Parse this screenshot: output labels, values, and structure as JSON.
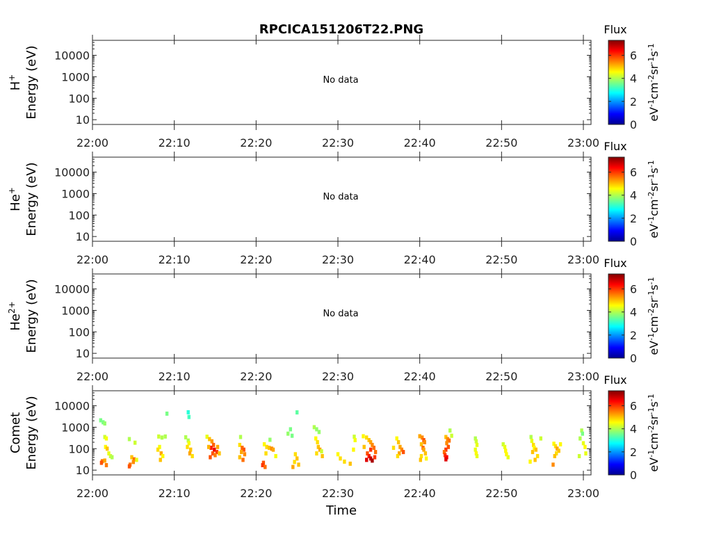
{
  "figure": {
    "title": "RPCICA151206T22.PNG",
    "xlabel": "Time",
    "x_ticks": [
      "22:00",
      "22:10",
      "22:20",
      "22:30",
      "22:40",
      "22:50",
      "23:00"
    ],
    "y_ticks": [
      "10000",
      "1000",
      "100",
      "10"
    ],
    "colorbar": {
      "title": "Flux",
      "ticks": [
        "6",
        "4",
        "2",
        "0"
      ],
      "unit_parts": [
        "eV",
        "-1",
        "cm",
        "-2",
        "sr",
        "-1",
        "s",
        "-1"
      ]
    },
    "no_data_text": "No data"
  },
  "chart_data": [
    {
      "type": "heatmap",
      "panel": "H+",
      "ylabel_species": "H",
      "ylabel_charge": "+",
      "ylabel_line2": "Energy (eV)",
      "x_range": [
        "22:00",
        "23:00"
      ],
      "y_scale": "log",
      "y_range": [
        6,
        50000
      ],
      "z_range": [
        0,
        7.3
      ],
      "has_data": false,
      "points": []
    },
    {
      "type": "heatmap",
      "panel": "He+",
      "ylabel_species": "He",
      "ylabel_charge": "+",
      "ylabel_line2": "Energy (eV)",
      "x_range": [
        "22:00",
        "23:00"
      ],
      "y_scale": "log",
      "y_range": [
        6,
        50000
      ],
      "z_range": [
        0,
        7.3
      ],
      "has_data": false,
      "points": []
    },
    {
      "type": "heatmap",
      "panel": "He2+",
      "ylabel_species": "He",
      "ylabel_charge": "2+",
      "ylabel_line2": "Energy (eV)",
      "x_range": [
        "22:00",
        "23:00"
      ],
      "y_scale": "log",
      "y_range": [
        6,
        50000
      ],
      "z_range": [
        0,
        7.3
      ],
      "has_data": false,
      "points": []
    },
    {
      "type": "heatmap",
      "panel": "Comet",
      "ylabel_species": "Comet",
      "ylabel_charge": "",
      "ylabel_line2": "Energy (eV)",
      "x_range": [
        "22:00",
        "23:00"
      ],
      "y_scale": "log",
      "y_range": [
        6,
        50000
      ],
      "z_range": [
        0,
        7.3
      ],
      "has_data": true,
      "point_format": [
        "minute",
        "energy_eV",
        "flux"
      ],
      "points": [
        [
          1.0,
          2100,
          3.6
        ],
        [
          1.3,
          1700,
          3.6
        ],
        [
          1.5,
          1500,
          3.8
        ],
        [
          1.5,
          350,
          4.2
        ],
        [
          1.7,
          300,
          4.5
        ],
        [
          1.6,
          120,
          4.6
        ],
        [
          1.8,
          100,
          5.0
        ],
        [
          1.2,
          26,
          5.5
        ],
        [
          1.1,
          22,
          5.8
        ],
        [
          1.5,
          28,
          5.2
        ],
        [
          2.0,
          60,
          4.4
        ],
        [
          2.2,
          45,
          4.2
        ],
        [
          1.7,
          17,
          5.5
        ],
        [
          2.4,
          40,
          4.0
        ],
        [
          4.5,
          280,
          4.0
        ],
        [
          5.2,
          190,
          4.2
        ],
        [
          4.8,
          40,
          5.0
        ],
        [
          5.1,
          32,
          5.6
        ],
        [
          5.0,
          24,
          5.4
        ],
        [
          4.6,
          18,
          5.5
        ],
        [
          4.5,
          15,
          5.8
        ],
        [
          5.4,
          30,
          4.4
        ],
        [
          8.1,
          370,
          4.2
        ],
        [
          8.5,
          330,
          4.0
        ],
        [
          8.2,
          120,
          4.5
        ],
        [
          8.0,
          90,
          4.8
        ],
        [
          8.4,
          60,
          5.2
        ],
        [
          8.6,
          45,
          4.6
        ],
        [
          8.9,
          370,
          4.0
        ],
        [
          9.1,
          4300,
          3.6
        ],
        [
          8.3,
          30,
          5.0
        ],
        [
          11.7,
          5000,
          3.0
        ],
        [
          11.8,
          3000,
          3.2
        ],
        [
          11.4,
          340,
          4.0
        ],
        [
          11.7,
          240,
          4.0
        ],
        [
          11.8,
          180,
          4.5
        ],
        [
          11.6,
          120,
          4.8
        ],
        [
          12.0,
          90,
          5.0
        ],
        [
          11.9,
          60,
          5.2
        ],
        [
          12.2,
          45,
          4.8
        ],
        [
          14.0,
          360,
          4.4
        ],
        [
          14.3,
          280,
          5.0
        ],
        [
          14.6,
          220,
          5.3
        ],
        [
          14.8,
          150,
          5.7
        ],
        [
          14.5,
          110,
          6.2
        ],
        [
          14.9,
          90,
          6.5
        ],
        [
          15.2,
          70,
          6.0
        ],
        [
          14.7,
          60,
          5.8
        ],
        [
          15.0,
          50,
          5.5
        ],
        [
          14.4,
          40,
          5.8
        ],
        [
          15.3,
          120,
          5.2
        ],
        [
          15.5,
          60,
          5.0
        ],
        [
          14.2,
          120,
          5.1
        ],
        [
          18.1,
          350,
          4.0
        ],
        [
          18.0,
          150,
          4.8
        ],
        [
          18.3,
          110,
          5.6
        ],
        [
          18.5,
          90,
          5.8
        ],
        [
          18.2,
          70,
          5.2
        ],
        [
          18.6,
          55,
          5.4
        ],
        [
          18.0,
          40,
          5.0
        ],
        [
          18.4,
          30,
          5.6
        ],
        [
          21.0,
          160,
          4.6
        ],
        [
          21.3,
          120,
          4.8
        ],
        [
          21.6,
          110,
          5.0
        ],
        [
          21.9,
          100,
          5.4
        ],
        [
          22.1,
          90,
          5.2
        ],
        [
          21.2,
          60,
          4.8
        ],
        [
          20.9,
          22,
          5.8
        ],
        [
          20.8,
          17,
          6.0
        ],
        [
          21.1,
          14,
          5.6
        ],
        [
          22.4,
          45,
          4.5
        ],
        [
          21.7,
          260,
          3.8
        ],
        [
          25.0,
          4900,
          3.4
        ],
        [
          24.2,
          800,
          3.6
        ],
        [
          23.9,
          500,
          3.8
        ],
        [
          24.4,
          400,
          3.6
        ],
        [
          24.8,
          55,
          4.8
        ],
        [
          25.0,
          35,
          5.0
        ],
        [
          24.7,
          24,
          4.8
        ],
        [
          25.2,
          18,
          5.0
        ],
        [
          24.5,
          14,
          5.2
        ],
        [
          27.1,
          1000,
          4.0
        ],
        [
          27.4,
          800,
          3.8
        ],
        [
          27.7,
          600,
          3.8
        ],
        [
          27.3,
          300,
          4.6
        ],
        [
          27.5,
          200,
          4.8
        ],
        [
          27.6,
          120,
          5.0
        ],
        [
          27.8,
          90,
          5.2
        ],
        [
          27.4,
          60,
          4.8
        ],
        [
          28.0,
          75,
          4.2
        ],
        [
          28.1,
          45,
          5.0
        ],
        [
          30.0,
          55,
          4.6
        ],
        [
          30.3,
          35,
          4.8
        ],
        [
          30.8,
          25,
          4.8
        ],
        [
          31.5,
          20,
          5.0
        ],
        [
          31.9,
          90,
          4.6
        ],
        [
          32.0,
          360,
          4.2
        ],
        [
          32.1,
          250,
          4.5
        ],
        [
          33.1,
          380,
          4.6
        ],
        [
          33.5,
          330,
          4.8
        ],
        [
          33.8,
          250,
          5.0
        ],
        [
          34.0,
          200,
          5.2
        ],
        [
          34.2,
          150,
          5.4
        ],
        [
          34.4,
          110,
          5.6
        ],
        [
          34.0,
          90,
          6.0
        ],
        [
          33.6,
          60,
          5.8
        ],
        [
          33.8,
          45,
          6.2
        ],
        [
          34.0,
          35,
          6.8
        ],
        [
          34.2,
          28,
          7.0
        ],
        [
          33.5,
          30,
          6.6
        ],
        [
          34.5,
          40,
          6.0
        ],
        [
          33.2,
          120,
          5.0
        ],
        [
          34.6,
          70,
          5.6
        ],
        [
          37.2,
          300,
          4.6
        ],
        [
          37.4,
          200,
          5.0
        ],
        [
          37.6,
          120,
          5.2
        ],
        [
          37.8,
          90,
          5.4
        ],
        [
          38.0,
          70,
          5.8
        ],
        [
          37.5,
          60,
          5.2
        ],
        [
          37.3,
          45,
          4.8
        ],
        [
          36.8,
          110,
          4.8
        ],
        [
          40.0,
          380,
          5.2
        ],
        [
          40.3,
          330,
          5.4
        ],
        [
          40.5,
          250,
          5.8
        ],
        [
          40.6,
          200,
          5.4
        ],
        [
          40.2,
          160,
          5.0
        ],
        [
          40.4,
          110,
          5.6
        ],
        [
          40.5,
          90,
          5.2
        ],
        [
          40.7,
          60,
          5.0
        ],
        [
          40.2,
          45,
          4.8
        ],
        [
          40.8,
          35,
          4.6
        ],
        [
          40.1,
          30,
          5.0
        ],
        [
          43.2,
          350,
          5.0
        ],
        [
          43.4,
          280,
          5.4
        ],
        [
          43.6,
          240,
          5.6
        ],
        [
          43.3,
          180,
          5.4
        ],
        [
          43.5,
          120,
          5.8
        ],
        [
          43.2,
          90,
          6.0
        ],
        [
          43.0,
          70,
          5.6
        ],
        [
          43.1,
          50,
          6.0
        ],
        [
          43.3,
          40,
          6.4
        ],
        [
          43.2,
          32,
          6.6
        ],
        [
          43.7,
          700,
          4.0
        ],
        [
          43.9,
          400,
          4.2
        ],
        [
          46.8,
          300,
          4.0
        ],
        [
          46.9,
          220,
          4.2
        ],
        [
          47.0,
          150,
          4.4
        ],
        [
          46.8,
          90,
          4.4
        ],
        [
          46.9,
          60,
          4.6
        ],
        [
          47.0,
          45,
          4.4
        ],
        [
          50.2,
          160,
          4.2
        ],
        [
          50.4,
          120,
          4.4
        ],
        [
          50.5,
          80,
          4.6
        ],
        [
          50.6,
          55,
          4.6
        ],
        [
          50.8,
          40,
          4.4
        ],
        [
          53.6,
          350,
          4.0
        ],
        [
          53.7,
          230,
          4.4
        ],
        [
          53.9,
          150,
          4.8
        ],
        [
          54.0,
          110,
          4.6
        ],
        [
          54.2,
          90,
          5.0
        ],
        [
          53.8,
          70,
          5.0
        ],
        [
          54.4,
          45,
          4.8
        ],
        [
          54.1,
          30,
          5.0
        ],
        [
          53.5,
          25,
          4.6
        ],
        [
          54.8,
          300,
          4.2
        ],
        [
          56.4,
          170,
          4.6
        ],
        [
          56.6,
          130,
          4.8
        ],
        [
          56.8,
          100,
          5.2
        ],
        [
          57.0,
          80,
          5.0
        ],
        [
          56.7,
          60,
          4.8
        ],
        [
          56.5,
          45,
          5.0
        ],
        [
          56.3,
          18,
          5.4
        ],
        [
          57.2,
          160,
          4.6
        ],
        [
          59.8,
          700,
          4.0
        ],
        [
          59.9,
          500,
          3.6
        ],
        [
          59.6,
          300,
          4.0
        ],
        [
          60.0,
          180,
          4.4
        ],
        [
          60.2,
          120,
          4.6
        ],
        [
          60.3,
          60,
          4.4
        ],
        [
          59.5,
          45,
          4.2
        ]
      ]
    }
  ]
}
